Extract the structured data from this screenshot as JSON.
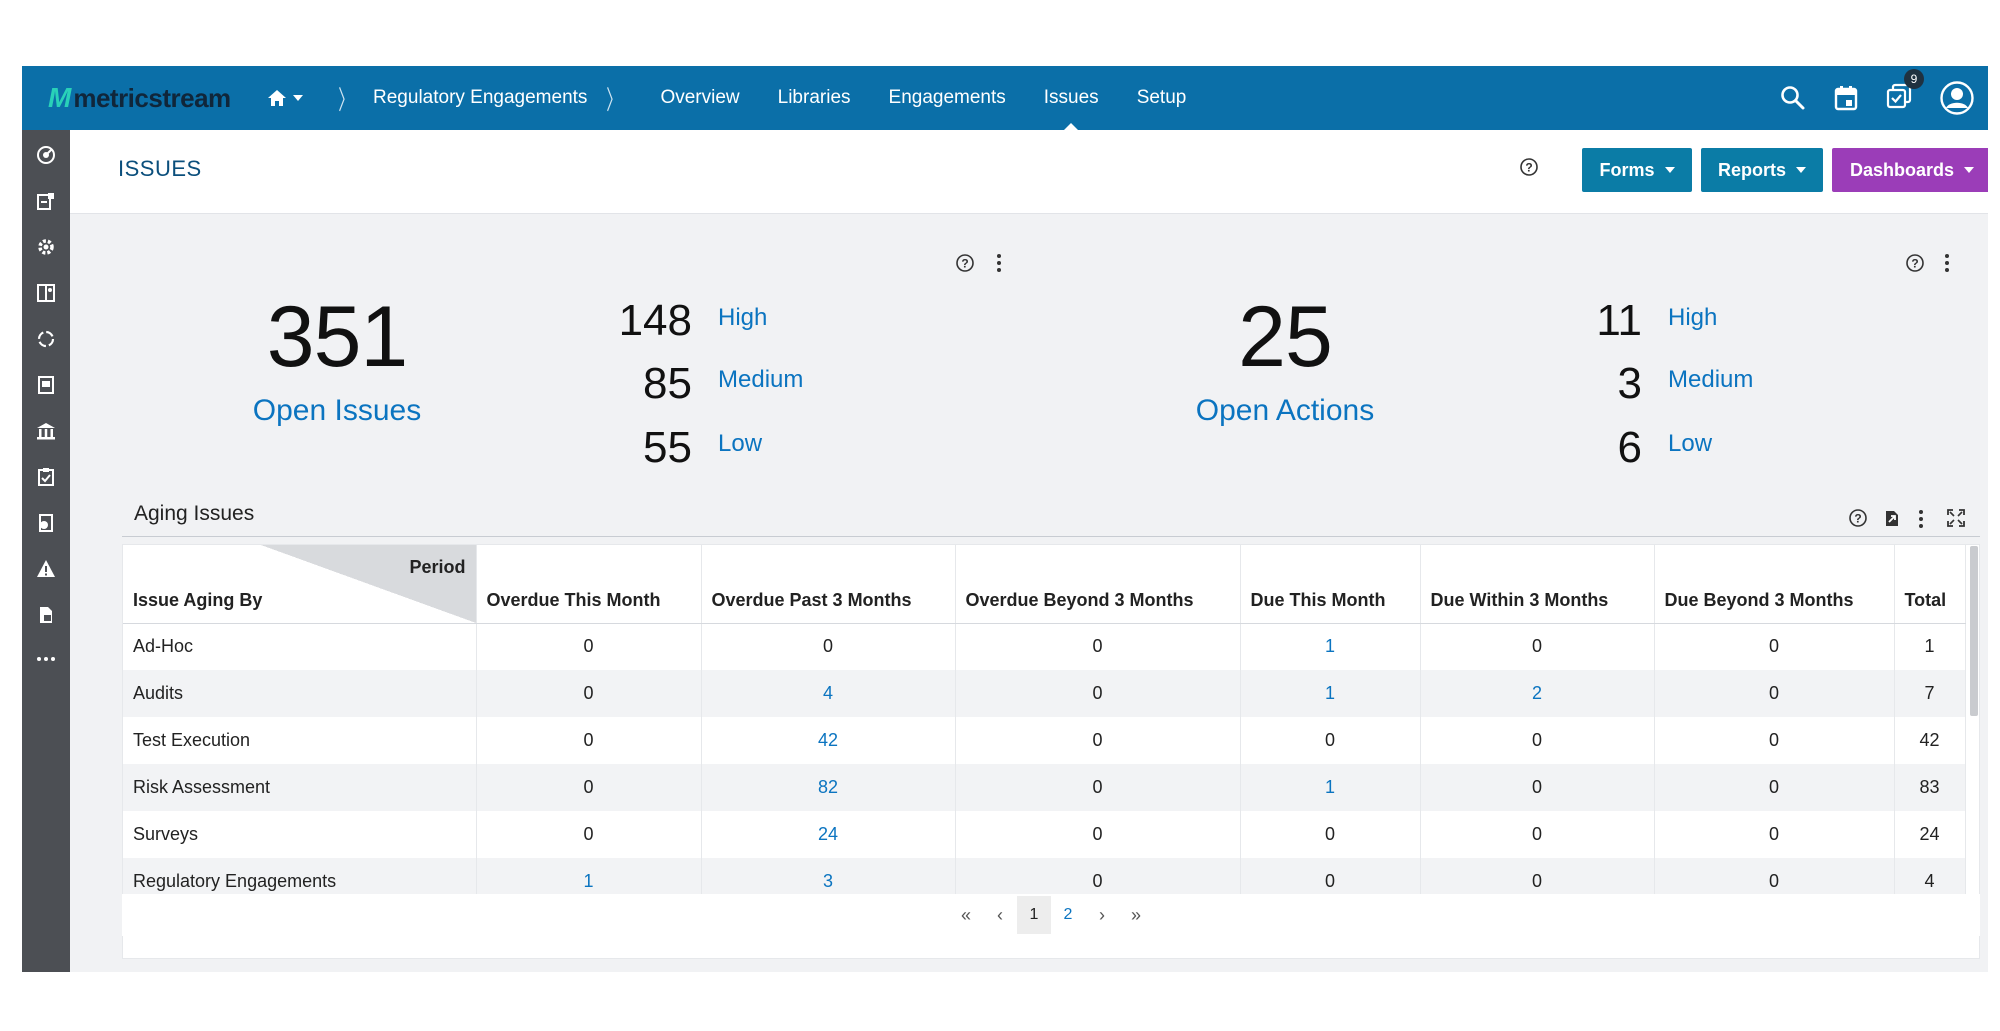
{
  "topnav": {
    "logo_mark": "M",
    "logo_text": "metricstream",
    "breadcrumb_root": "Regulatory Engagements",
    "items": [
      {
        "label": "Overview",
        "active": false
      },
      {
        "label": "Libraries",
        "active": false
      },
      {
        "label": "Engagements",
        "active": false
      },
      {
        "label": "Issues",
        "active": true
      },
      {
        "label": "Setup",
        "active": false
      }
    ],
    "notification_count": "9"
  },
  "page": {
    "title": "ISSUES"
  },
  "header_buttons": {
    "forms": "Forms",
    "reports": "Reports",
    "dashboards": "Dashboards",
    "forms_color": "#0b7ca6",
    "reports_color": "#0b7ca6",
    "dashboards_color": "#9b3db8"
  },
  "issues_summary": {
    "total": "351",
    "total_label": "Open Issues",
    "high_count": "148",
    "high_label": "High",
    "medium_count": "85",
    "medium_label": "Medium",
    "low_count": "55",
    "low_label": "Low"
  },
  "actions_summary": {
    "total": "25",
    "total_label": "Open Actions",
    "high_count": "11",
    "high_label": "High",
    "medium_count": "3",
    "medium_label": "Medium",
    "low_count": "6",
    "low_label": "Low"
  },
  "aging": {
    "title": "Aging Issues",
    "corner_period": "Period",
    "corner_by": "Issue Aging By",
    "columns": [
      "Overdue This Month",
      "Overdue Past 3 Months",
      "Overdue Beyond 3 Months",
      "Due This Month",
      "Due Within 3 Months",
      "Due Beyond 3 Months",
      "Total"
    ],
    "rows": [
      {
        "label": "Ad-Hoc",
        "cells": [
          "0",
          "0",
          "0",
          "1",
          "0",
          "0",
          "1"
        ]
      },
      {
        "label": "Audits",
        "cells": [
          "0",
          "4",
          "0",
          "1",
          "2",
          "0",
          "7"
        ]
      },
      {
        "label": "Test Execution",
        "cells": [
          "0",
          "42",
          "0",
          "0",
          "0",
          "0",
          "42"
        ]
      },
      {
        "label": "Risk Assessment",
        "cells": [
          "0",
          "82",
          "0",
          "1",
          "0",
          "0",
          "83"
        ]
      },
      {
        "label": "Surveys",
        "cells": [
          "0",
          "24",
          "0",
          "0",
          "0",
          "0",
          "24"
        ]
      },
      {
        "label": "Regulatory Engagements",
        "cells": [
          "1",
          "3",
          "0",
          "0",
          "0",
          "0",
          "4"
        ]
      }
    ],
    "pager": {
      "first": "«",
      "prev": "‹",
      "pages": [
        "1",
        "2"
      ],
      "current": "1",
      "next": "›",
      "last": "»"
    }
  },
  "colors": {
    "nav_bg": "#0b6fa8",
    "link": "#0b74c0",
    "rail_bg": "#4c4f54"
  }
}
